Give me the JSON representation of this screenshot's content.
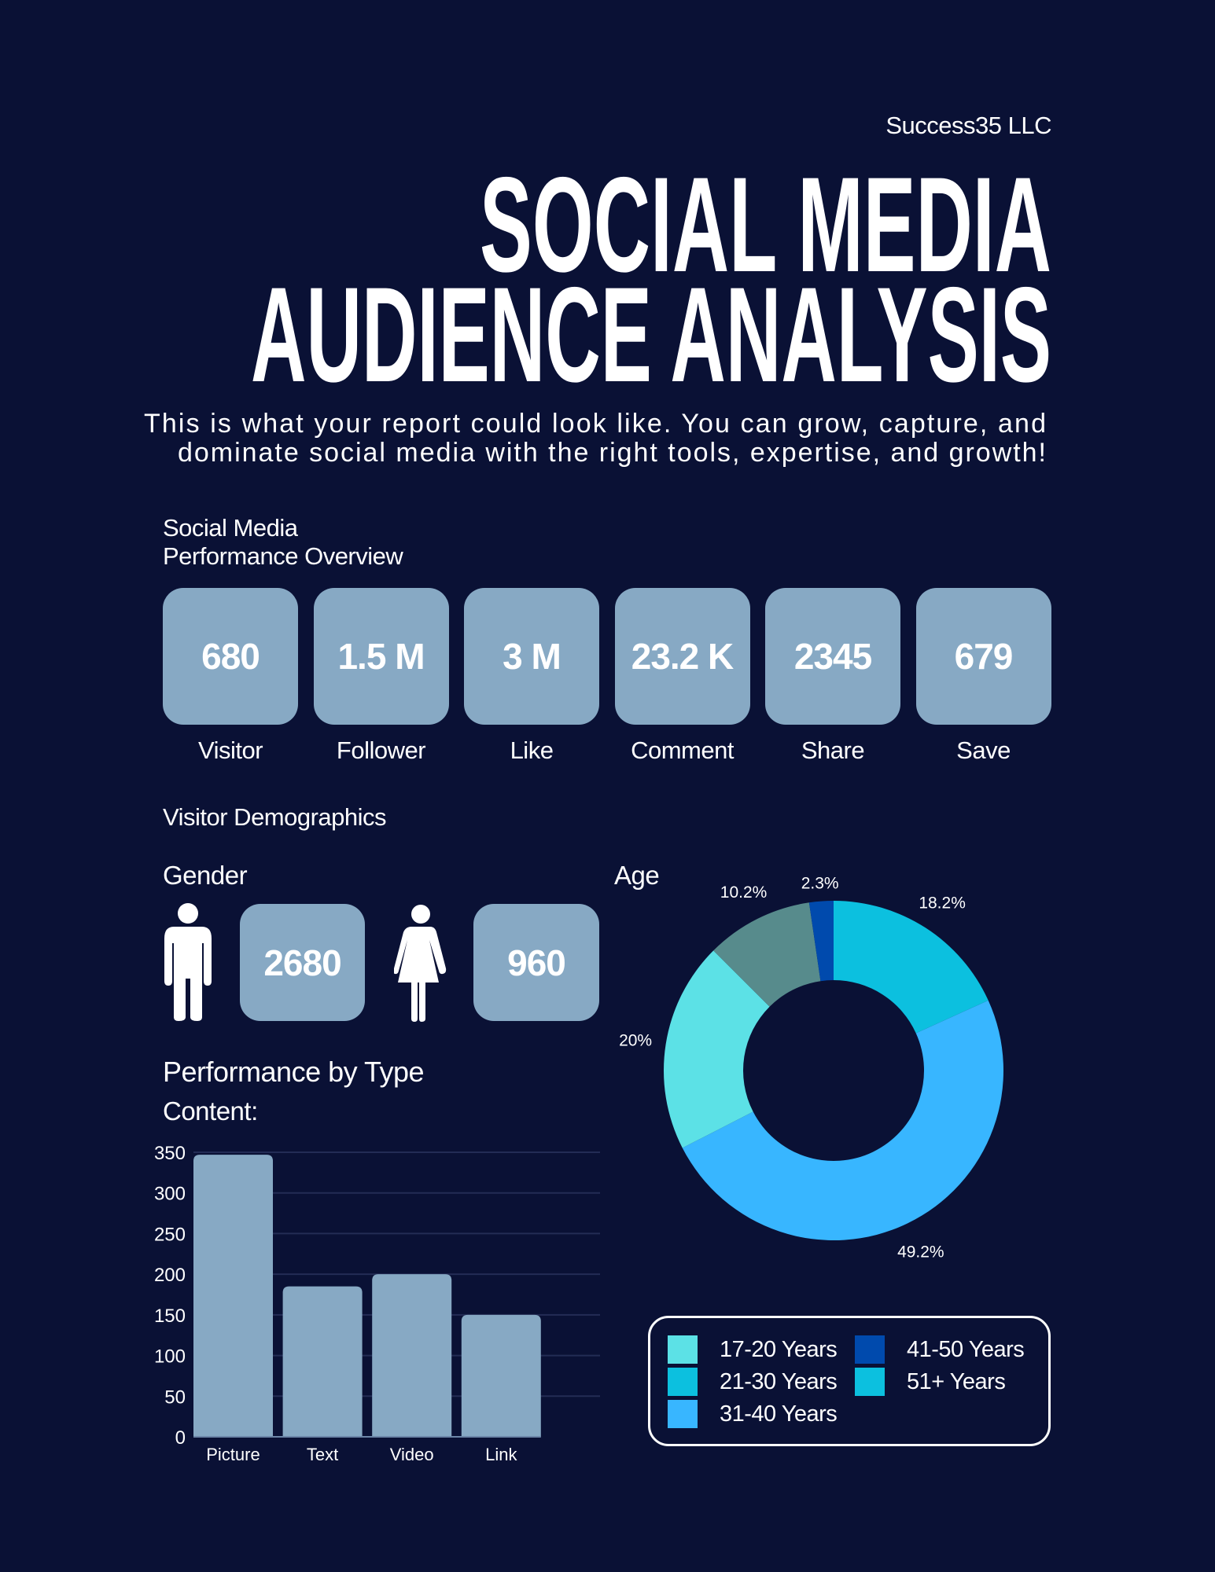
{
  "header": {
    "company": "Success35 LLC",
    "title_line1": "SOCIAL MEDIA",
    "title_line2": "AUDIENCE ANALYSIS",
    "subtitle_line1": "This is what  your report could look like. You can grow, capture, and",
    "subtitle_line2": "dominate social media with the right tools, expertise, and growth!"
  },
  "overview": {
    "title_line1": "Social Media",
    "title_line2": "Performance Overview",
    "stats": [
      {
        "value": "680",
        "label": "Visitor"
      },
      {
        "value": "1.5 M",
        "label": "Follower"
      },
      {
        "value": "3 M",
        "label": "Like"
      },
      {
        "value": "23.2 K",
        "label": "Comment"
      },
      {
        "value": "2345",
        "label": "Share"
      },
      {
        "value": "679",
        "label": "Save"
      }
    ]
  },
  "demographics": {
    "title": "Visitor Demographics",
    "gender_label": "Gender",
    "male_count": "2680",
    "female_count": "960",
    "age_label": "Age",
    "performance_title": "Performance by Type",
    "content_label": "Content:"
  },
  "colors": {
    "background": "#0a1135",
    "card": "#87a9c4"
  },
  "chart_data": [
    {
      "type": "bar",
      "categories": [
        "Picture",
        "Text",
        "Video",
        "Link"
      ],
      "values": [
        347,
        185,
        200,
        150
      ],
      "ylim": [
        0,
        350
      ],
      "yticks": [
        "0",
        "50",
        "100",
        "150",
        "200",
        "250",
        "300",
        "350"
      ],
      "grid": true,
      "color": "#87a9c4"
    },
    {
      "type": "pie",
      "donut": true,
      "slices": [
        {
          "value": 18.2,
          "label": "18.2%",
          "color": "#0cc0df"
        },
        {
          "value": 49.2,
          "label": "49.2%",
          "color": "#38b6ff"
        },
        {
          "value": 20,
          "label": "20%",
          "color": "#5ce1e6"
        },
        {
          "value": 10.2,
          "label": "10.2%",
          "color": "#578b8c"
        },
        {
          "value": 2.3,
          "label": "2.3%",
          "color": "#004aad"
        }
      ],
      "legend": [
        {
          "label": "17-20 Years",
          "color": "#5ce1e6"
        },
        {
          "label": "21-30 Years",
          "color": "#0cc0df"
        },
        {
          "label": "31-40 Years",
          "color": "#38b6ff"
        },
        {
          "label": "41-50 Years",
          "color": "#004aad"
        },
        {
          "label": "51+ Years",
          "color": "#0cc0df"
        }
      ],
      "legend_position": "bottom"
    }
  ]
}
